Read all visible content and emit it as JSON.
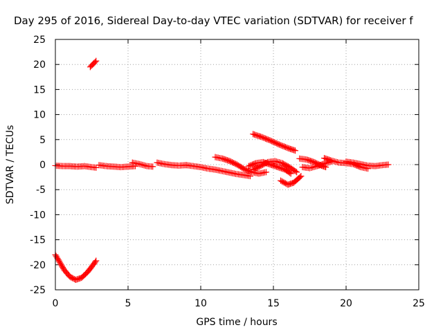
{
  "chart_data": {
    "type": "scatter",
    "title": "Day 295 of 2016, Sidereal Day-to-day VTEC variation (SDTVAR) for receiver f",
    "xlabel": "GPS time / hours",
    "ylabel": "SDTVAR / TECUs",
    "xlim": [
      0,
      25
    ],
    "ylim": [
      -25,
      25
    ],
    "x_ticks": [
      0,
      5,
      10,
      15,
      20,
      25
    ],
    "y_ticks": [
      -25,
      -20,
      -15,
      -10,
      -5,
      0,
      5,
      10,
      15,
      20,
      25
    ],
    "grid": true,
    "marker": "+",
    "color": "#ff0000",
    "segments": [
      [
        [
          0.0,
          -18.0
        ],
        [
          0.3,
          -19.5
        ],
        [
          0.6,
          -21.0
        ],
        [
          1.0,
          -22.4
        ],
        [
          1.4,
          -23.0
        ],
        [
          1.8,
          -22.6
        ],
        [
          2.2,
          -21.5
        ],
        [
          2.5,
          -20.4
        ],
        [
          2.8,
          -19.2
        ]
      ],
      [
        [
          2.4,
          19.5
        ],
        [
          2.6,
          20.1
        ],
        [
          2.8,
          20.7
        ]
      ],
      [
        [
          0.0,
          -0.2
        ],
        [
          0.5,
          -0.3
        ],
        [
          1.0,
          -0.3
        ],
        [
          1.5,
          -0.4
        ],
        [
          2.0,
          -0.3
        ],
        [
          2.5,
          -0.5
        ],
        [
          2.8,
          -0.6
        ]
      ],
      [
        [
          3.0,
          -0.1
        ],
        [
          3.5,
          -0.3
        ],
        [
          4.0,
          -0.4
        ],
        [
          4.5,
          -0.5
        ],
        [
          5.0,
          -0.4
        ],
        [
          5.5,
          -0.3
        ]
      ],
      [
        [
          5.3,
          0.4
        ],
        [
          5.8,
          0.1
        ],
        [
          6.3,
          -0.3
        ],
        [
          6.7,
          -0.4
        ]
      ],
      [
        [
          7.0,
          0.4
        ],
        [
          7.5,
          0.1
        ],
        [
          8.0,
          -0.1
        ],
        [
          8.5,
          -0.2
        ],
        [
          9.0,
          -0.1
        ]
      ],
      [
        [
          9.0,
          -0.1
        ],
        [
          9.5,
          -0.3
        ],
        [
          10.0,
          -0.5
        ],
        [
          10.5,
          -0.8
        ],
        [
          11.0,
          -1.0
        ],
        [
          11.5,
          -1.3
        ],
        [
          12.0,
          -1.6
        ],
        [
          12.5,
          -1.9
        ],
        [
          13.0,
          -2.1
        ],
        [
          13.4,
          -2.3
        ]
      ],
      [
        [
          11.0,
          1.5
        ],
        [
          11.5,
          1.2
        ],
        [
          12.0,
          0.7
        ],
        [
          12.5,
          0.0
        ],
        [
          13.0,
          -0.9
        ],
        [
          13.5,
          -1.5
        ],
        [
          14.0,
          -1.8
        ],
        [
          14.5,
          -1.5
        ]
      ],
      [
        [
          13.3,
          -0.3
        ],
        [
          13.8,
          0.3
        ],
        [
          14.3,
          0.5
        ],
        [
          14.8,
          0.0
        ],
        [
          15.3,
          -0.5
        ],
        [
          15.8,
          -1.0
        ],
        [
          16.2,
          -1.8
        ]
      ],
      [
        [
          13.6,
          -1.0
        ],
        [
          14.1,
          -0.3
        ],
        [
          14.6,
          0.5
        ],
        [
          15.1,
          0.7
        ],
        [
          15.6,
          0.3
        ],
        [
          16.1,
          -0.5
        ],
        [
          16.6,
          -1.5
        ]
      ],
      [
        [
          13.6,
          6.1
        ],
        [
          14.2,
          5.5
        ],
        [
          14.8,
          4.8
        ],
        [
          15.4,
          4.0
        ],
        [
          16.0,
          3.3
        ],
        [
          16.5,
          2.8
        ]
      ],
      [
        [
          15.5,
          -3.2
        ],
        [
          16.0,
          -4.0
        ],
        [
          16.4,
          -3.6
        ],
        [
          16.9,
          -2.3
        ]
      ],
      [
        [
          16.8,
          1.2
        ],
        [
          17.3,
          1.0
        ],
        [
          17.8,
          0.5
        ],
        [
          18.3,
          -0.2
        ],
        [
          18.6,
          -0.5
        ]
      ],
      [
        [
          17.0,
          -0.5
        ],
        [
          17.5,
          -0.7
        ],
        [
          18.0,
          -0.3
        ],
        [
          18.5,
          0.2
        ],
        [
          19.0,
          0.6
        ]
      ],
      [
        [
          18.5,
          1.3
        ],
        [
          19.0,
          0.8
        ],
        [
          19.5,
          0.4
        ],
        [
          20.0,
          0.3
        ],
        [
          20.5,
          0.1
        ],
        [
          21.0,
          -0.5
        ],
        [
          21.5,
          -0.8
        ]
      ],
      [
        [
          20.0,
          0.6
        ],
        [
          20.5,
          0.4
        ],
        [
          21.0,
          0.1
        ],
        [
          21.5,
          -0.2
        ],
        [
          22.0,
          -0.3
        ],
        [
          22.5,
          -0.1
        ],
        [
          22.9,
          0.0
        ]
      ]
    ]
  }
}
